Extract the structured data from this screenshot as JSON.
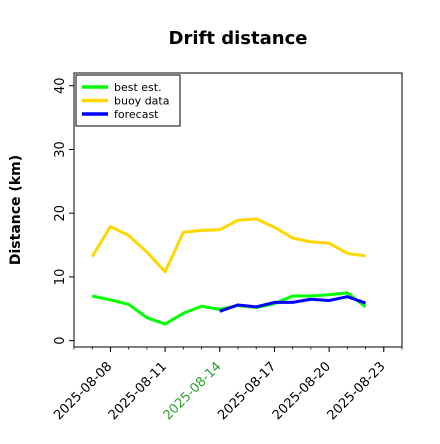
{
  "chart_data": {
    "type": "line",
    "title": "Drift distance",
    "xlabel": "",
    "ylabel": "Distance (km)",
    "ylim": [
      -1,
      42
    ],
    "xlim": [
      "2025-08-06",
      "2025-08-24"
    ],
    "yticks": [
      0,
      10,
      20,
      30,
      40
    ],
    "xticks": [
      {
        "date": "2025-08-08",
        "label": "2025-08-08",
        "color": "#000000"
      },
      {
        "date": "2025-08-11",
        "label": "2025-08-11",
        "color": "#000000"
      },
      {
        "date": "2025-08-14",
        "label": "2025-08-14",
        "color": "#2ca02c"
      },
      {
        "date": "2025-08-17",
        "label": "2025-08-17",
        "color": "#000000"
      },
      {
        "date": "2025-08-20",
        "label": "2025-08-20",
        "color": "#000000"
      },
      {
        "date": "2025-08-23",
        "label": "2025-08-23",
        "color": "#000000"
      }
    ],
    "grid": false,
    "legend_position": "top-left",
    "series": [
      {
        "name": "best est.",
        "color": "#00ff00",
        "x": [
          "2025-08-07",
          "2025-08-08",
          "2025-08-09",
          "2025-08-10",
          "2025-08-11",
          "2025-08-12",
          "2025-08-13",
          "2025-08-14",
          "2025-08-15",
          "2025-08-16",
          "2025-08-17",
          "2025-08-18",
          "2025-08-19",
          "2025-08-20",
          "2025-08-21",
          "2025-08-22"
        ],
        "y": [
          7.0,
          6.4,
          5.7,
          3.6,
          2.6,
          4.3,
          5.4,
          4.9,
          5.5,
          5.2,
          5.8,
          7.0,
          7.0,
          7.2,
          7.5,
          5.3
        ]
      },
      {
        "name": "buoy data",
        "color": "#ffd700",
        "x": [
          "2025-08-07",
          "2025-08-08",
          "2025-08-09",
          "2025-08-10",
          "2025-08-11",
          "2025-08-12",
          "2025-08-13",
          "2025-08-14",
          "2025-08-15",
          "2025-08-16",
          "2025-08-17",
          "2025-08-18",
          "2025-08-19",
          "2025-08-20",
          "2025-08-21",
          "2025-08-22"
        ],
        "y": [
          13.2,
          17.9,
          16.5,
          13.9,
          10.8,
          17.0,
          17.3,
          17.4,
          18.9,
          19.1,
          17.8,
          16.1,
          15.5,
          15.3,
          13.7,
          13.3
        ]
      },
      {
        "name": "forecast",
        "color": "#0000ff",
        "x": [
          "2025-08-14",
          "2025-08-15",
          "2025-08-16",
          "2025-08-17",
          "2025-08-18",
          "2025-08-19",
          "2025-08-20",
          "2025-08-21",
          "2025-08-22"
        ],
        "y": [
          4.6,
          5.6,
          5.3,
          6.0,
          6.0,
          6.5,
          6.3,
          6.9,
          5.9
        ]
      }
    ]
  }
}
